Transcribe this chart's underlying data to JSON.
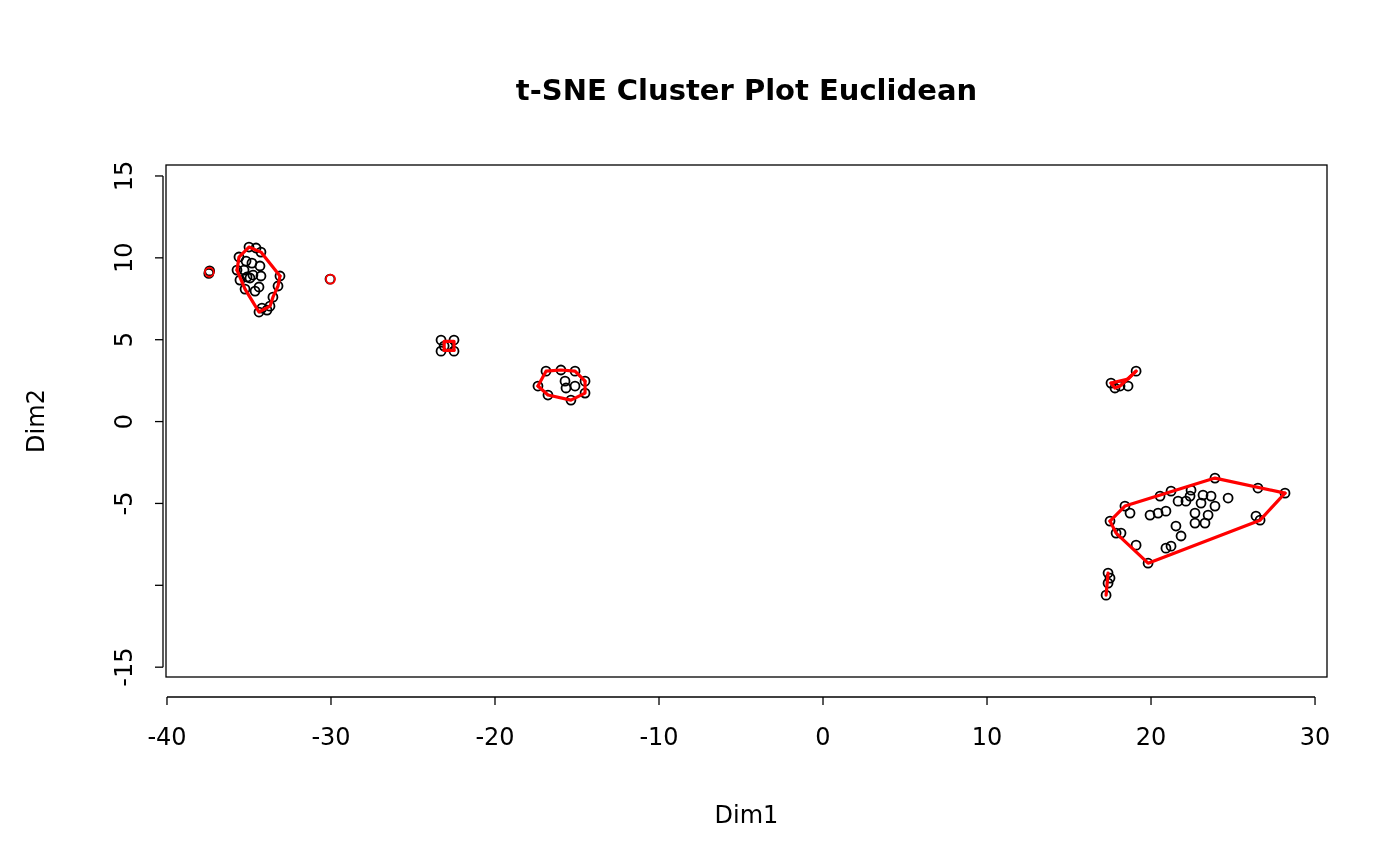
{
  "chart_data": {
    "type": "scatter",
    "title": "t-SNE Cluster Plot Euclidean",
    "xlabel": "Dim1",
    "ylabel": "Dim2",
    "xlim": [
      -40.06,
      30.73
    ],
    "ylim": [
      -15.6,
      15.67
    ],
    "xticks": [
      -40,
      -30,
      -20,
      -10,
      0,
      10,
      20,
      30
    ],
    "yticks": [
      15,
      10,
      5,
      0,
      -5,
      {
        "value": -10,
        "label": null
      },
      -15
    ],
    "grid": false,
    "series": [
      {
        "marker": "circle",
        "color": "#000000",
        "x": [
          -37.4,
          -37.45,
          -35.0,
          -34.57,
          -35.61,
          -34.27,
          -35.18,
          -34.82,
          -34.33,
          -35.73,
          -35.3,
          -34.76,
          -35.55,
          -34.27,
          -35.12,
          -33.11,
          -33.23,
          -34.94,
          -34.39,
          -35.24,
          -34.63,
          -33.54,
          -33.72,
          -34.21,
          -34.39,
          -33.9,
          -30.06,
          -23.29,
          -22.5,
          -23.29,
          -22.5,
          -22.87,
          -23.1,
          -17.38,
          -16.89,
          -15.98,
          -15.12,
          -14.51,
          -14.51,
          -15.37,
          -16.77,
          -15.67,
          -15.12,
          -15.73,
          17.56,
          19.09,
          18.11,
          18.6,
          17.8,
          17.5,
          17.87,
          18.17,
          18.41,
          18.72,
          19.09,
          19.82,
          19.94,
          20.55,
          20.43,
          20.91,
          20.91,
          21.22,
          21.22,
          21.52,
          21.83,
          21.65,
          22.13,
          22.44,
          22.38,
          22.68,
          22.68,
          23.17,
          23.05,
          23.29,
          23.48,
          23.66,
          23.9,
          23.9,
          24.7,
          26.52,
          26.4,
          26.65,
          28.17,
          17.38,
          17.26,
          17.38,
          17.5
        ],
        "values": [
          9.2,
          9.05,
          10.66,
          10.6,
          10.05,
          10.35,
          9.8,
          9.68,
          9.5,
          9.25,
          9.25,
          8.95,
          8.64,
          8.89,
          8.83,
          8.89,
          8.28,
          8.77,
          8.22,
          8.09,
          7.97,
          7.6,
          7.05,
          6.93,
          6.69,
          6.81,
          8.7,
          4.98,
          4.98,
          4.3,
          4.3,
          4.61,
          4.61,
          2.17,
          3.08,
          3.15,
          3.08,
          2.47,
          1.74,
          1.31,
          1.62,
          2.05,
          2.17,
          2.47,
          2.35,
          3.08,
          2.17,
          2.17,
          2.05,
          -6.08,
          -6.81,
          -6.81,
          -5.16,
          -5.59,
          -7.55,
          -8.65,
          -5.71,
          -4.55,
          -5.59,
          -5.47,
          -7.73,
          -7.61,
          -4.25,
          -6.38,
          -6.99,
          -4.86,
          -4.86,
          -4.19,
          -4.55,
          -5.59,
          -6.2,
          -4.49,
          -4.98,
          -6.2,
          -5.71,
          -4.55,
          -5.16,
          -3.45,
          -4.67,
          -4.06,
          -5.77,
          -6.02,
          -4.37,
          -9.25,
          -10.6,
          -9.87,
          -9.56
        ]
      },
      {
        "marker": "circle",
        "color": "#ff0000",
        "x": [
          -37.42,
          -30.03
        ],
        "values": [
          9.12,
          8.7
        ]
      },
      {
        "type": "line",
        "marker": "none",
        "color": "#ff0000",
        "x": [
          -35.73,
          -35.61,
          -35.0,
          -34.27,
          -33.11
        ],
        "values": [
          9.25,
          10.05,
          10.66,
          10.35,
          8.89
        ]
      },
      {
        "type": "line",
        "marker": "none",
        "color": "#ff0000",
        "x": [
          -35.73,
          -35.24,
          -34.39,
          -33.72,
          -33.54,
          -33.23,
          -33.11
        ],
        "values": [
          9.25,
          8.09,
          6.69,
          7.05,
          7.6,
          8.28,
          8.89
        ]
      },
      {
        "type": "line",
        "marker": "none",
        "color": "#ff0000",
        "x": [
          -23.1,
          -23.1,
          -22.5,
          -22.5
        ],
        "values": [
          4.35,
          4.9,
          4.9,
          4.35
        ]
      },
      {
        "type": "line",
        "marker": "none",
        "color": "#ff0000",
        "x": [
          -23.1,
          -22.5
        ],
        "values": [
          4.35,
          4.35
        ]
      },
      {
        "type": "line",
        "marker": "none",
        "color": "#ff0000",
        "x": [
          -17.38,
          -16.89,
          -15.98,
          -15.12,
          -14.51
        ],
        "values": [
          2.17,
          3.08,
          3.15,
          3.08,
          2.47
        ]
      },
      {
        "type": "line",
        "marker": "none",
        "color": "#ff0000",
        "x": [
          -17.38,
          -16.77,
          -15.37,
          -14.51,
          -14.51
        ],
        "values": [
          2.17,
          1.62,
          1.31,
          1.74,
          2.47
        ]
      },
      {
        "type": "line",
        "marker": "none",
        "color": "#ff0000",
        "x": [
          17.56,
          18.6,
          19.09
        ],
        "values": [
          2.35,
          2.6,
          3.08
        ]
      },
      {
        "type": "line",
        "marker": "none",
        "color": "#ff0000",
        "x": [
          17.56,
          17.8,
          18.11,
          19.09
        ],
        "values": [
          2.35,
          2.05,
          2.17,
          3.08
        ]
      },
      {
        "type": "line",
        "marker": "none",
        "color": "#ff0000",
        "x": [
          17.5,
          18.41,
          23.9,
          28.17
        ],
        "values": [
          -6.08,
          -5.16,
          -3.45,
          -4.37
        ]
      },
      {
        "type": "line",
        "marker": "none",
        "color": "#ff0000",
        "x": [
          17.5,
          17.87,
          19.82,
          26.65,
          28.17
        ],
        "values": [
          -6.08,
          -6.81,
          -8.65,
          -6.02,
          -4.37
        ]
      },
      {
        "type": "line",
        "marker": "none",
        "color": "#ff0000",
        "x": [
          17.26,
          17.38
        ],
        "values": [
          -10.6,
          -9.25
        ]
      }
    ]
  }
}
